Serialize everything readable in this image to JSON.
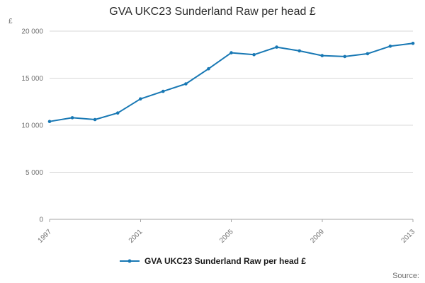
{
  "title": "GVA UKC23 Sunderland Raw per head £",
  "legend": {
    "label": "GVA UKC23 Sunderland Raw per head £"
  },
  "source_label": "Source:",
  "y_axis_unit_label": "£",
  "colors": {
    "line": "#1878b4",
    "grid": "#d9d9d9",
    "axis": "#a6a6a6",
    "tick_text": "#707070"
  },
  "chart_data": {
    "type": "line",
    "title": "GVA UKC23 Sunderland Raw per head £",
    "x": [
      1997,
      1998,
      1999,
      2000,
      2001,
      2002,
      2003,
      2004,
      2005,
      2006,
      2007,
      2008,
      2009,
      2010,
      2011,
      2012,
      2013
    ],
    "values": [
      10400,
      10800,
      10600,
      11300,
      12800,
      13600,
      14400,
      16000,
      17700,
      17500,
      18300,
      17900,
      17400,
      17300,
      17600,
      18400,
      18700
    ],
    "ylim": [
      0,
      20000
    ],
    "yticks": [
      0,
      5000,
      10000,
      15000,
      20000
    ],
    "ytick_labels": [
      "0",
      "5 000",
      "10 000",
      "15 000",
      "20 000"
    ],
    "xticks": [
      1997,
      2001,
      2005,
      2009,
      2013
    ],
    "xtick_labels": [
      "1997",
      "2001",
      "2005",
      "2009",
      "2013"
    ],
    "xlabel": "",
    "ylabel": "£",
    "grid": true,
    "legend_position": "bottom",
    "marker": "circle"
  }
}
